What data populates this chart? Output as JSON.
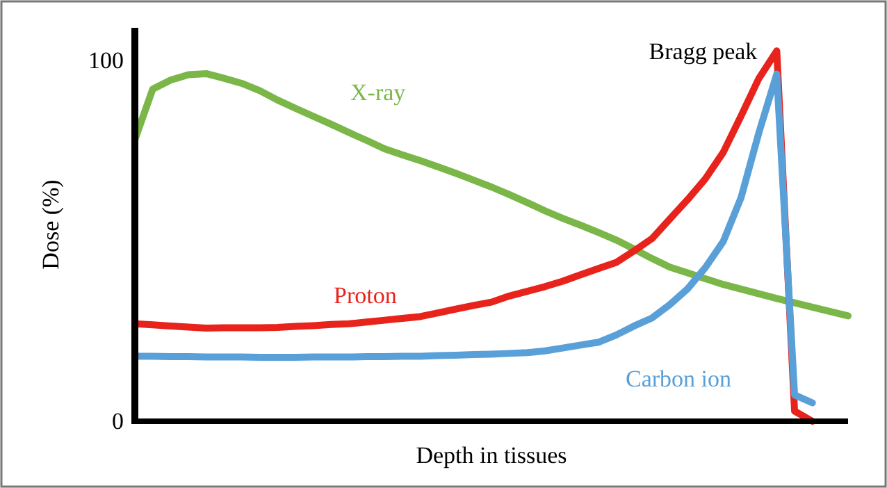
{
  "chart_data": {
    "type": "line",
    "xlabel": "Depth in tissues",
    "ylabel": "Dose (%)",
    "categories": [
      null,
      null,
      null,
      null,
      null,
      null,
      null,
      null,
      null,
      null,
      null,
      null,
      null,
      null,
      null,
      null,
      null,
      null,
      null,
      null,
      null,
      null,
      null,
      null,
      null,
      null,
      null,
      null,
      null,
      null,
      null,
      null,
      null,
      null,
      null,
      null,
      null,
      null,
      null,
      null,
      null
    ],
    "ylim": [
      0,
      109
    ],
    "yticks": [
      0,
      100
    ],
    "tick_labels": "y",
    "grid": false,
    "legend": false,
    "marker": "none",
    "line_style": "solid",
    "annotations": [
      "Bragg peak"
    ],
    "series": [
      {
        "name": "X-ray",
        "color": "#7ab648",
        "values": [
          78,
          92,
          94.5,
          96,
          96.3,
          95,
          93.6,
          91.6,
          89,
          86.7,
          84.5,
          82.3,
          80,
          77.8,
          75.5,
          73.8,
          72.2,
          70.5,
          68.7,
          66.8,
          64.9,
          62.8,
          60.6,
          58.3,
          56.2,
          54.3,
          52.3,
          50.2,
          47.7,
          45.1,
          42.7,
          41.1,
          39.5,
          37.9,
          36.6,
          35.3,
          34,
          32.8,
          31.6,
          30.4,
          29.2
        ]
      },
      {
        "name": "Proton",
        "color": "#e8231c",
        "values": [
          27,
          26.7,
          26.4,
          26.1,
          25.8,
          25.9,
          25.9,
          25.9,
          26,
          26.3,
          26.5,
          26.8,
          27,
          27.5,
          28,
          28.5,
          29,
          30,
          31.1,
          32.1,
          33,
          34.7,
          36,
          37.3,
          38.8,
          40.6,
          42.3,
          44,
          47.2,
          50.6,
          56,
          61.4,
          67.2,
          74.5,
          84.6,
          95,
          102.6,
          2.8,
          0,
          null,
          null
        ]
      },
      {
        "name": "Carbon ion",
        "color": "#5aa0d8",
        "values": [
          18,
          18,
          17.9,
          17.9,
          17.8,
          17.8,
          17.8,
          17.7,
          17.7,
          17.7,
          17.8,
          17.8,
          17.8,
          17.9,
          17.9,
          18,
          18,
          18.2,
          18.3,
          18.5,
          18.6,
          18.8,
          19,
          19.5,
          20.3,
          21.1,
          21.9,
          23.9,
          26.4,
          28.6,
          32.3,
          36.7,
          42.6,
          49.8,
          62,
          80,
          96.2,
          7.3,
          5.1,
          null,
          null
        ]
      }
    ]
  }
}
